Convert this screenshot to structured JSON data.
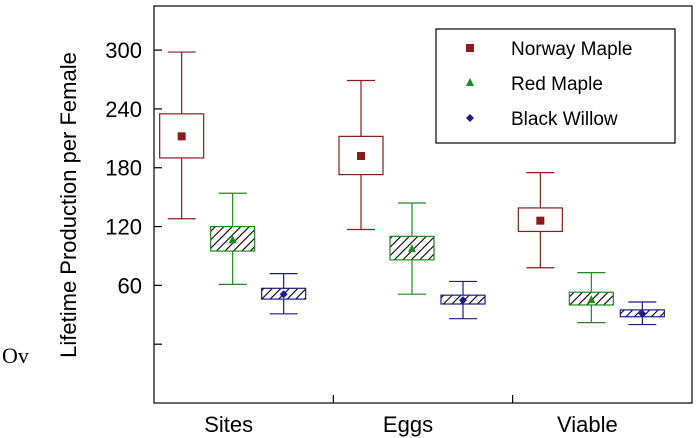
{
  "overlay_text": "Ov",
  "chart_data": {
    "type": "box",
    "ylabel": "Lifetime Production per Female",
    "xlabel": "",
    "categories": [
      "Sites",
      "Eggs",
      "Viable"
    ],
    "y_ticks": [
      60,
      120,
      180,
      240,
      300
    ],
    "ylim": [
      -60,
      345
    ],
    "grid": false,
    "legend_position": "top-right",
    "series": [
      {
        "name": "Norway Maple",
        "marker": "square",
        "color": "#8b1a1a",
        "fill": "none",
        "boxes": [
          {
            "mean": 212,
            "q1": 190,
            "q3": 235,
            "low": 128,
            "high": 298
          },
          {
            "mean": 192,
            "q1": 173,
            "q3": 212,
            "low": 117,
            "high": 269
          },
          {
            "mean": 126,
            "q1": 115,
            "q3": 139,
            "low": 78,
            "high": 175
          }
        ]
      },
      {
        "name": "Red Maple",
        "marker": "triangle",
        "color": "#1a8a1a",
        "fill": "hatch",
        "boxes": [
          {
            "mean": 106,
            "q1": 95,
            "q3": 120,
            "low": 61,
            "high": 154
          },
          {
            "mean": 97,
            "q1": 86,
            "q3": 110,
            "low": 51,
            "high": 144
          },
          {
            "mean": 45,
            "q1": 40,
            "q3": 53,
            "low": 22,
            "high": 73
          }
        ]
      },
      {
        "name": "Black Willow",
        "marker": "diamond",
        "color": "#1a1a8b",
        "fill": "hatch",
        "boxes": [
          {
            "mean": 51,
            "q1": 46,
            "q3": 57,
            "low": 31,
            "high": 72
          },
          {
            "mean": 45,
            "q1": 41,
            "q3": 50,
            "low": 26,
            "high": 64
          },
          {
            "mean": 31,
            "q1": 28,
            "q3": 35,
            "low": 20,
            "high": 43
          }
        ]
      }
    ]
  }
}
